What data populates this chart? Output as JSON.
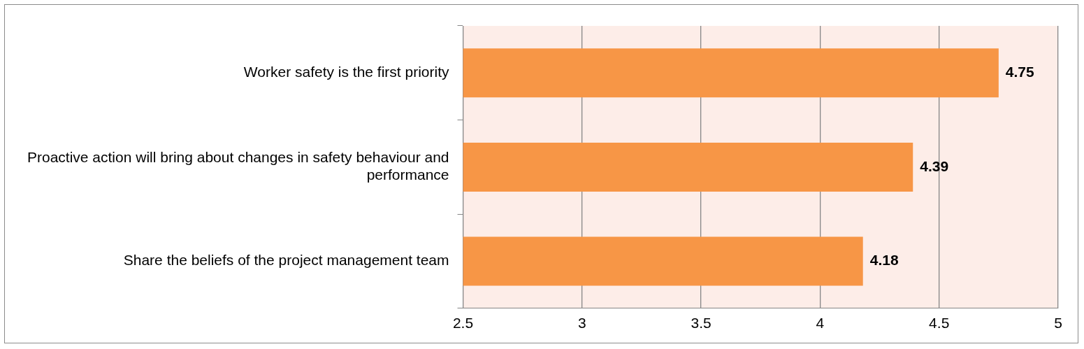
{
  "chart_data": {
    "type": "bar",
    "orientation": "horizontal",
    "categories": [
      "Worker safety is the first priority",
      "Proactive action will bring about changes in safety behaviour and performance",
      "Share the beliefs of the project management team"
    ],
    "values": [
      4.75,
      4.39,
      4.18
    ],
    "color": "#f79646",
    "xlim": [
      2.5,
      5
    ],
    "xticks": [
      2.5,
      3,
      3.5,
      4,
      4.5,
      5
    ],
    "grid": "x",
    "data_labels": true,
    "legend": false
  }
}
